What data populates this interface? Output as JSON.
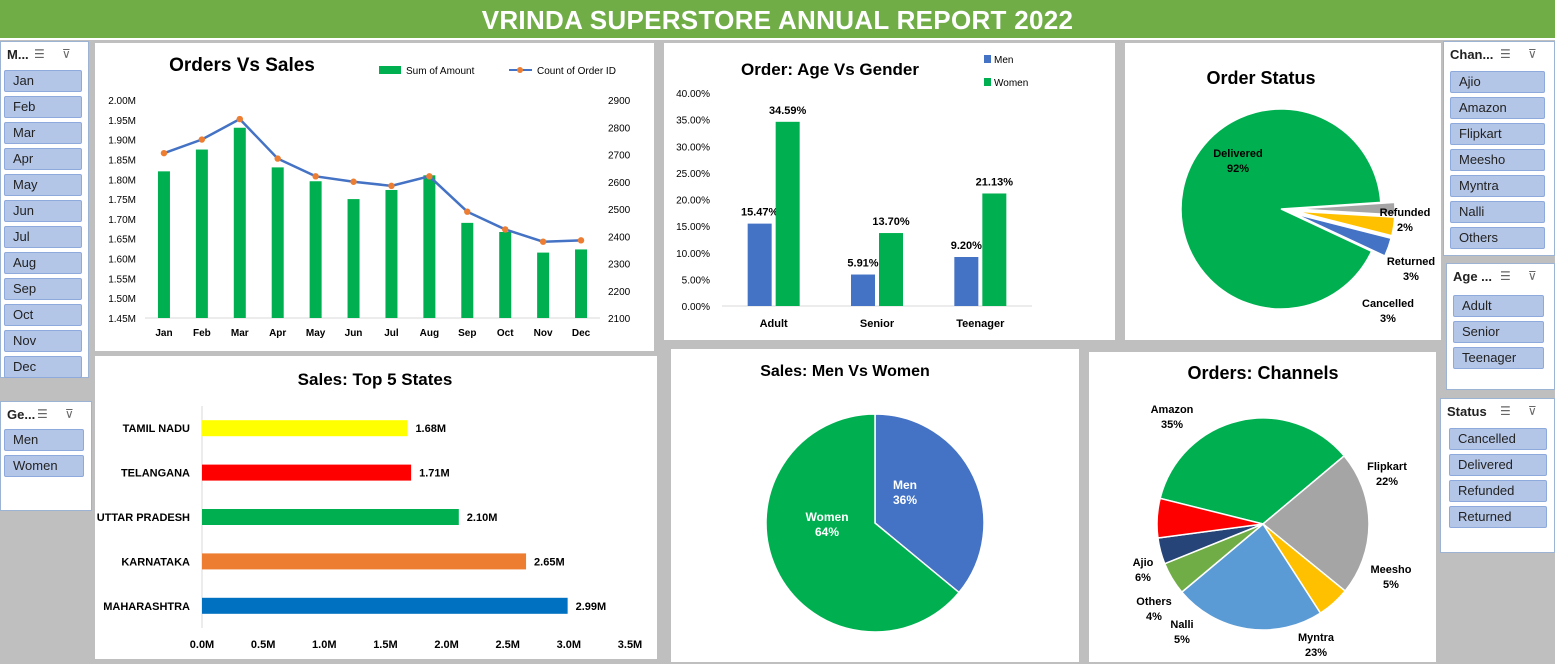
{
  "report_title": "VRINDA SUPERSTORE ANNUAL REPORT 2022",
  "colors": {
    "banner": "#70ad47",
    "green": "#00b050",
    "blue": "#4472c4",
    "orange": "#ed7d31",
    "slicer_item": "#b4c6e7"
  },
  "slicers": {
    "month": {
      "title": "M...",
      "items": [
        "Jan",
        "Feb",
        "Mar",
        "Apr",
        "May",
        "Jun",
        "Jul",
        "Aug",
        "Sep",
        "Oct",
        "Nov",
        "Dec"
      ]
    },
    "gender": {
      "title": "Ge...",
      "items": [
        "Men",
        "Women"
      ]
    },
    "channel": {
      "title": "Chan...",
      "items": [
        "Ajio",
        "Amazon",
        "Flipkart",
        "Meesho",
        "Myntra",
        "Nalli",
        "Others"
      ]
    },
    "age": {
      "title": "Age ...",
      "items": [
        "Adult",
        "Senior",
        "Teenager"
      ]
    },
    "status": {
      "title": "Status",
      "items": [
        "Cancelled",
        "Delivered",
        "Refunded",
        "Returned"
      ]
    },
    "icons": [
      "multi-select-icon",
      "clear-filter-icon"
    ]
  },
  "chart_data": [
    {
      "type": "bar",
      "title": "Orders Vs Sales",
      "categories": [
        "Jan",
        "Feb",
        "Mar",
        "Apr",
        "May",
        "Jun",
        "Jul",
        "Aug",
        "Sep",
        "Oct",
        "Nov",
        "Dec"
      ],
      "series": [
        {
          "name": "Sum of Amount",
          "type": "bar",
          "axis": "left",
          "values": [
            1.82,
            1.875,
            1.93,
            1.83,
            1.795,
            1.75,
            1.773,
            1.81,
            1.69,
            1.667,
            1.615,
            1.623
          ]
        },
        {
          "name": "Count of Order ID",
          "type": "line",
          "axis": "right",
          "values": [
            2705,
            2755,
            2830,
            2685,
            2620,
            2600,
            2585,
            2620,
            2490,
            2425,
            2380,
            2385
          ]
        }
      ],
      "y_left_ticks": [
        "1.45M",
        "1.50M",
        "1.55M",
        "1.60M",
        "1.65M",
        "1.70M",
        "1.75M",
        "1.80M",
        "1.85M",
        "1.90M",
        "1.95M",
        "2.00M"
      ],
      "y_right_ticks": [
        "2100",
        "2200",
        "2300",
        "2400",
        "2500",
        "2600",
        "2700",
        "2800",
        "2900"
      ],
      "ylim_left": [
        1.45,
        2.0
      ],
      "ylim_right": [
        2100,
        2900
      ],
      "legend": "top-right"
    },
    {
      "type": "bar",
      "title": "Order: Age Vs Gender",
      "categories": [
        "Adult",
        "Senior",
        "Teenager"
      ],
      "series": [
        {
          "name": "Men",
          "values": [
            15.47,
            5.91,
            9.2
          ],
          "labels": [
            "15.47%",
            "5.91%",
            "9.20%"
          ]
        },
        {
          "name": "Women",
          "values": [
            34.59,
            13.7,
            21.13
          ],
          "labels": [
            "34.59%",
            "13.70%",
            "21.13%"
          ]
        }
      ],
      "y_ticks": [
        "0.00%",
        "5.00%",
        "10.00%",
        "15.00%",
        "20.00%",
        "25.00%",
        "30.00%",
        "35.00%",
        "40.00%"
      ],
      "ylim": [
        0,
        40
      ],
      "legend": "top-right"
    },
    {
      "type": "pie",
      "title": "Order Status",
      "slices": [
        {
          "name": "Delivered",
          "value": 92,
          "label": "92%"
        },
        {
          "name": "Refunded",
          "value": 2,
          "label": "2%"
        },
        {
          "name": "Returned",
          "value": 3,
          "label": "3%"
        },
        {
          "name": "Cancelled",
          "value": 3,
          "label": "3%"
        }
      ]
    },
    {
      "type": "bar",
      "orientation": "horizontal",
      "title": "Sales: Top 5 States",
      "categories": [
        "TAMIL NADU",
        "TELANGANA",
        "UTTAR PRADESH",
        "KARNATAKA",
        "MAHARASHTRA"
      ],
      "values": [
        1.68,
        1.71,
        2.1,
        2.65,
        2.99
      ],
      "labels": [
        "1.68M",
        "1.71M",
        "2.10M",
        "2.65M",
        "2.99M"
      ],
      "bar_colors": [
        "#ffff00",
        "#ff0000",
        "#00b050",
        "#ed7d31",
        "#0070c0"
      ],
      "x_ticks": [
        "0.0M",
        "0.5M",
        "1.0M",
        "1.5M",
        "2.0M",
        "2.5M",
        "3.0M",
        "3.5M"
      ],
      "xlim": [
        0,
        3.5
      ]
    },
    {
      "type": "pie",
      "title": "Sales: Men Vs Women",
      "slices": [
        {
          "name": "Men",
          "value": 36,
          "label": "36%"
        },
        {
          "name": "Women",
          "value": 64,
          "label": "64%"
        }
      ]
    },
    {
      "type": "pie",
      "title": "Orders: Channels",
      "slices": [
        {
          "name": "Amazon",
          "value": 35,
          "label": "35%"
        },
        {
          "name": "Flipkart",
          "value": 22,
          "label": "22%"
        },
        {
          "name": "Meesho",
          "value": 5,
          "label": "5%"
        },
        {
          "name": "Myntra",
          "value": 23,
          "label": "23%"
        },
        {
          "name": "Nalli",
          "value": 5,
          "label": "5%"
        },
        {
          "name": "Others",
          "value": 4,
          "label": "4%"
        },
        {
          "name": "Ajio",
          "value": 6,
          "label": "6%"
        }
      ]
    }
  ]
}
